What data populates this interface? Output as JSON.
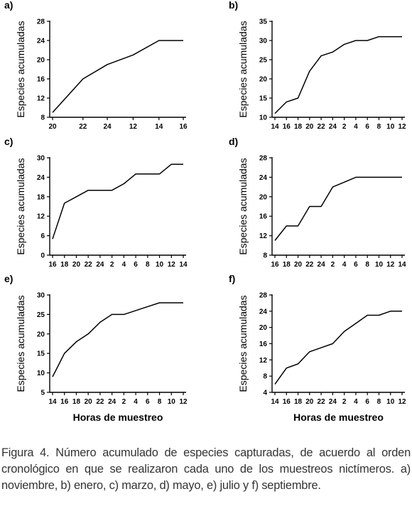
{
  "figure": {
    "caption": "Figura 4. Número acumulado de especies capturadas, de acuerdo al orden cronológico en que se realizaron cada uno de los muestreos nictímeros. a) noviembre, b) enero, c) marzo, d) mayo, e) julio y f) septiembre.",
    "xlabel_bottom": "Horas de muestreo"
  },
  "chart_data": [
    {
      "type": "line",
      "panel": "a)",
      "ylabel": "Especies acumuladas",
      "categories": [
        "20",
        "22",
        "24",
        "12",
        "14",
        "16"
      ],
      "x": [
        0,
        1,
        1.8,
        2.65,
        3.5,
        4.3
      ],
      "values": [
        9,
        16,
        19,
        21,
        24,
        24
      ],
      "ylim": [
        8,
        28
      ],
      "yticks": [
        8,
        12,
        16,
        20,
        24,
        28
      ]
    },
    {
      "type": "line",
      "panel": "b)",
      "ylabel": "Especies acumuladas",
      "categories": [
        "14",
        "16",
        "18",
        "20",
        "22",
        "24",
        "2",
        "4",
        "6",
        "8",
        "10",
        "12"
      ],
      "values": [
        11,
        14,
        15,
        22,
        26,
        27,
        29,
        30,
        30,
        31,
        31,
        31
      ],
      "ylim": [
        10,
        35
      ],
      "yticks": [
        10,
        15,
        20,
        25,
        30,
        35
      ]
    },
    {
      "type": "line",
      "panel": "c)",
      "ylabel": "Especies acumuladas",
      "categories": [
        "16",
        "18",
        "20",
        "22",
        "24",
        "2",
        "4",
        "6",
        "8",
        "10",
        "12",
        "14"
      ],
      "values": [
        5,
        16,
        18,
        20,
        20,
        20,
        22,
        25,
        25,
        25,
        28,
        28
      ],
      "ylim": [
        0,
        30
      ],
      "yticks": [
        0,
        6,
        12,
        18,
        24,
        30
      ]
    },
    {
      "type": "line",
      "panel": "d)",
      "ylabel": "Especies acumuladas",
      "categories": [
        "16",
        "18",
        "20",
        "22",
        "24",
        "2",
        "4",
        "6",
        "8",
        "10",
        "12",
        "14"
      ],
      "values": [
        11,
        14,
        14,
        18,
        18,
        22,
        23,
        24,
        24,
        24,
        24,
        24
      ],
      "ylim": [
        8,
        28
      ],
      "yticks": [
        8,
        12,
        16,
        20,
        24,
        28
      ]
    },
    {
      "type": "line",
      "panel": "e)",
      "ylabel": "Especies acumuladas",
      "categories": [
        "14",
        "16",
        "18",
        "20",
        "22",
        "24",
        "2",
        "4",
        "6",
        "8",
        "10",
        "12"
      ],
      "values": [
        9,
        15,
        18,
        20,
        23,
        25,
        25,
        26,
        27,
        28,
        28,
        28
      ],
      "ylim": [
        5,
        30
      ],
      "yticks": [
        5,
        10,
        15,
        20,
        25,
        30
      ]
    },
    {
      "type": "line",
      "panel": "f)",
      "ylabel": "Especies acumuladas",
      "categories": [
        "14",
        "16",
        "18",
        "20",
        "22",
        "24",
        "2",
        "4",
        "6",
        "8",
        "10",
        "12"
      ],
      "values": [
        6,
        10,
        11,
        14,
        15,
        16,
        19,
        21,
        23,
        23,
        24,
        24
      ],
      "ylim": [
        4,
        28
      ],
      "yticks": [
        4,
        8,
        12,
        16,
        20,
        24,
        28
      ]
    }
  ]
}
